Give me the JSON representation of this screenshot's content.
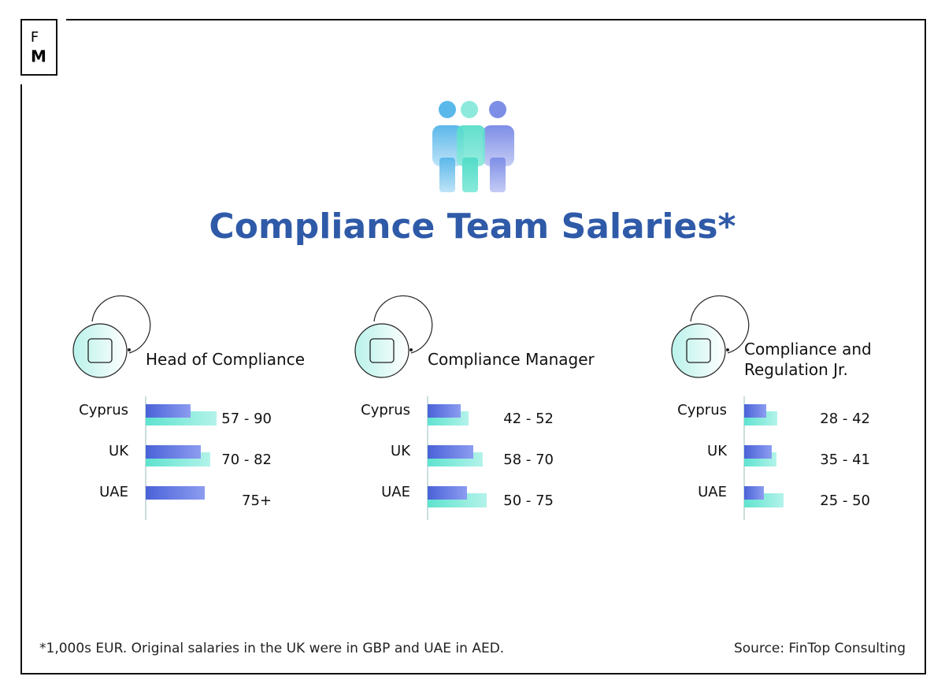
{
  "header": {
    "logo_top": "F",
    "logo_bottom": "M",
    "title": "Compliance Team Salaries*"
  },
  "chart_data": [
    {
      "type": "bar",
      "title": "Head of Compliance",
      "categories": [
        "Cyprus",
        "UK",
        "UAE"
      ],
      "series": [
        {
          "color": "#4f68dc",
          "values": [
            57,
            70,
            75
          ]
        },
        {
          "color": "#5fe3cf",
          "values": [
            90,
            82,
            null
          ]
        }
      ],
      "value_labels": [
        "57 - 90",
        "70 - 82",
        "75+"
      ],
      "xlim": [
        0,
        100
      ]
    },
    {
      "type": "bar",
      "title": "Compliance Manager",
      "categories": [
        "Cyprus",
        "UK",
        "UAE"
      ],
      "series": [
        {
          "color": "#4f68dc",
          "values": [
            42,
            58,
            50
          ]
        },
        {
          "color": "#5fe3cf",
          "values": [
            52,
            70,
            75
          ]
        }
      ],
      "value_labels": [
        "42 - 52",
        "58 - 70",
        "50 - 75"
      ],
      "xlim": [
        0,
        100
      ]
    },
    {
      "type": "bar",
      "title": "Compliance and Regulation Jr.",
      "categories": [
        "Cyprus",
        "UK",
        "UAE"
      ],
      "series": [
        {
          "color": "#4f68dc",
          "values": [
            28,
            35,
            25
          ]
        },
        {
          "color": "#5fe3cf",
          "values": [
            42,
            41,
            50
          ]
        }
      ],
      "value_labels": [
        "28 - 42",
        "35 - 41",
        "25 - 50"
      ],
      "xlim": [
        0,
        100
      ]
    }
  ],
  "footer": {
    "note": "*1,000s EUR. Original salaries in the UK were in GBP and UAE in AED.",
    "source": "Source: FinTop Consulting"
  }
}
